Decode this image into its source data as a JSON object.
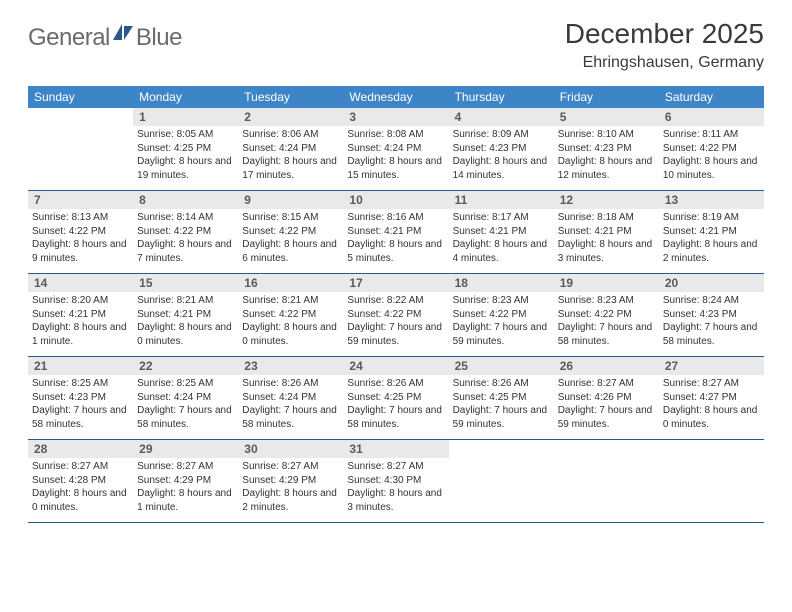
{
  "brand": {
    "word1": "General",
    "word2": "Blue"
  },
  "title": "December 2025",
  "location": "Ehringshausen, Germany",
  "colors": {
    "header_bg": "#3d85c6",
    "header_text": "#ffffff",
    "daynum_bg": "#e8e9ea",
    "daynum_text": "#5a5a5a",
    "body_text": "#333333",
    "rule": "#2a5a8a",
    "logo_gray": "#6b6b6b",
    "logo_blue": "#2a5a8a"
  },
  "weekdays": [
    "Sunday",
    "Monday",
    "Tuesday",
    "Wednesday",
    "Thursday",
    "Friday",
    "Saturday"
  ],
  "weeks": [
    [
      {
        "n": "",
        "sunrise": "",
        "sunset": "",
        "daylight": ""
      },
      {
        "n": "1",
        "sunrise": "Sunrise: 8:05 AM",
        "sunset": "Sunset: 4:25 PM",
        "daylight": "Daylight: 8 hours and 19 minutes."
      },
      {
        "n": "2",
        "sunrise": "Sunrise: 8:06 AM",
        "sunset": "Sunset: 4:24 PM",
        "daylight": "Daylight: 8 hours and 17 minutes."
      },
      {
        "n": "3",
        "sunrise": "Sunrise: 8:08 AM",
        "sunset": "Sunset: 4:24 PM",
        "daylight": "Daylight: 8 hours and 15 minutes."
      },
      {
        "n": "4",
        "sunrise": "Sunrise: 8:09 AM",
        "sunset": "Sunset: 4:23 PM",
        "daylight": "Daylight: 8 hours and 14 minutes."
      },
      {
        "n": "5",
        "sunrise": "Sunrise: 8:10 AM",
        "sunset": "Sunset: 4:23 PM",
        "daylight": "Daylight: 8 hours and 12 minutes."
      },
      {
        "n": "6",
        "sunrise": "Sunrise: 8:11 AM",
        "sunset": "Sunset: 4:22 PM",
        "daylight": "Daylight: 8 hours and 10 minutes."
      }
    ],
    [
      {
        "n": "7",
        "sunrise": "Sunrise: 8:13 AM",
        "sunset": "Sunset: 4:22 PM",
        "daylight": "Daylight: 8 hours and 9 minutes."
      },
      {
        "n": "8",
        "sunrise": "Sunrise: 8:14 AM",
        "sunset": "Sunset: 4:22 PM",
        "daylight": "Daylight: 8 hours and 7 minutes."
      },
      {
        "n": "9",
        "sunrise": "Sunrise: 8:15 AM",
        "sunset": "Sunset: 4:22 PM",
        "daylight": "Daylight: 8 hours and 6 minutes."
      },
      {
        "n": "10",
        "sunrise": "Sunrise: 8:16 AM",
        "sunset": "Sunset: 4:21 PM",
        "daylight": "Daylight: 8 hours and 5 minutes."
      },
      {
        "n": "11",
        "sunrise": "Sunrise: 8:17 AM",
        "sunset": "Sunset: 4:21 PM",
        "daylight": "Daylight: 8 hours and 4 minutes."
      },
      {
        "n": "12",
        "sunrise": "Sunrise: 8:18 AM",
        "sunset": "Sunset: 4:21 PM",
        "daylight": "Daylight: 8 hours and 3 minutes."
      },
      {
        "n": "13",
        "sunrise": "Sunrise: 8:19 AM",
        "sunset": "Sunset: 4:21 PM",
        "daylight": "Daylight: 8 hours and 2 minutes."
      }
    ],
    [
      {
        "n": "14",
        "sunrise": "Sunrise: 8:20 AM",
        "sunset": "Sunset: 4:21 PM",
        "daylight": "Daylight: 8 hours and 1 minute."
      },
      {
        "n": "15",
        "sunrise": "Sunrise: 8:21 AM",
        "sunset": "Sunset: 4:21 PM",
        "daylight": "Daylight: 8 hours and 0 minutes."
      },
      {
        "n": "16",
        "sunrise": "Sunrise: 8:21 AM",
        "sunset": "Sunset: 4:22 PM",
        "daylight": "Daylight: 8 hours and 0 minutes."
      },
      {
        "n": "17",
        "sunrise": "Sunrise: 8:22 AM",
        "sunset": "Sunset: 4:22 PM",
        "daylight": "Daylight: 7 hours and 59 minutes."
      },
      {
        "n": "18",
        "sunrise": "Sunrise: 8:23 AM",
        "sunset": "Sunset: 4:22 PM",
        "daylight": "Daylight: 7 hours and 59 minutes."
      },
      {
        "n": "19",
        "sunrise": "Sunrise: 8:23 AM",
        "sunset": "Sunset: 4:22 PM",
        "daylight": "Daylight: 7 hours and 58 minutes."
      },
      {
        "n": "20",
        "sunrise": "Sunrise: 8:24 AM",
        "sunset": "Sunset: 4:23 PM",
        "daylight": "Daylight: 7 hours and 58 minutes."
      }
    ],
    [
      {
        "n": "21",
        "sunrise": "Sunrise: 8:25 AM",
        "sunset": "Sunset: 4:23 PM",
        "daylight": "Daylight: 7 hours and 58 minutes."
      },
      {
        "n": "22",
        "sunrise": "Sunrise: 8:25 AM",
        "sunset": "Sunset: 4:24 PM",
        "daylight": "Daylight: 7 hours and 58 minutes."
      },
      {
        "n": "23",
        "sunrise": "Sunrise: 8:26 AM",
        "sunset": "Sunset: 4:24 PM",
        "daylight": "Daylight: 7 hours and 58 minutes."
      },
      {
        "n": "24",
        "sunrise": "Sunrise: 8:26 AM",
        "sunset": "Sunset: 4:25 PM",
        "daylight": "Daylight: 7 hours and 58 minutes."
      },
      {
        "n": "25",
        "sunrise": "Sunrise: 8:26 AM",
        "sunset": "Sunset: 4:25 PM",
        "daylight": "Daylight: 7 hours and 59 minutes."
      },
      {
        "n": "26",
        "sunrise": "Sunrise: 8:27 AM",
        "sunset": "Sunset: 4:26 PM",
        "daylight": "Daylight: 7 hours and 59 minutes."
      },
      {
        "n": "27",
        "sunrise": "Sunrise: 8:27 AM",
        "sunset": "Sunset: 4:27 PM",
        "daylight": "Daylight: 8 hours and 0 minutes."
      }
    ],
    [
      {
        "n": "28",
        "sunrise": "Sunrise: 8:27 AM",
        "sunset": "Sunset: 4:28 PM",
        "daylight": "Daylight: 8 hours and 0 minutes."
      },
      {
        "n": "29",
        "sunrise": "Sunrise: 8:27 AM",
        "sunset": "Sunset: 4:29 PM",
        "daylight": "Daylight: 8 hours and 1 minute."
      },
      {
        "n": "30",
        "sunrise": "Sunrise: 8:27 AM",
        "sunset": "Sunset: 4:29 PM",
        "daylight": "Daylight: 8 hours and 2 minutes."
      },
      {
        "n": "31",
        "sunrise": "Sunrise: 8:27 AM",
        "sunset": "Sunset: 4:30 PM",
        "daylight": "Daylight: 8 hours and 3 minutes."
      },
      {
        "n": "",
        "sunrise": "",
        "sunset": "",
        "daylight": ""
      },
      {
        "n": "",
        "sunrise": "",
        "sunset": "",
        "daylight": ""
      },
      {
        "n": "",
        "sunrise": "",
        "sunset": "",
        "daylight": ""
      }
    ]
  ]
}
